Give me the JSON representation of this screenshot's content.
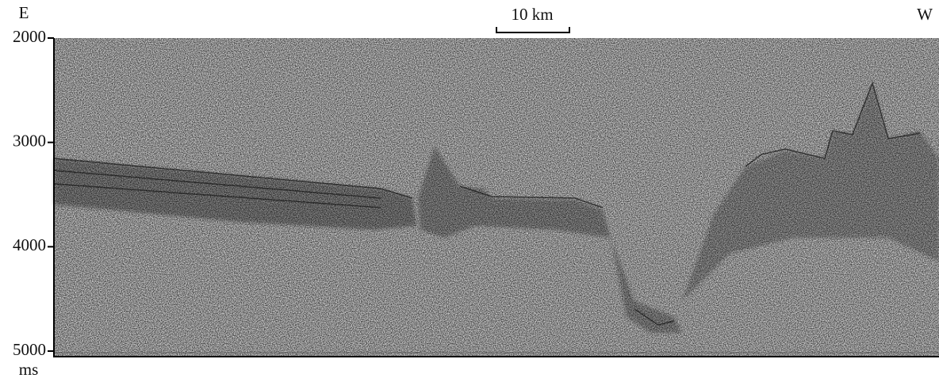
{
  "labels": {
    "left": "E",
    "right": "W",
    "scale_bar": "10 km",
    "unit": "ms"
  },
  "y_axis": {
    "lim": [
      2000,
      5000
    ],
    "ticks": [
      2000,
      3000,
      4000,
      5000
    ]
  }
}
